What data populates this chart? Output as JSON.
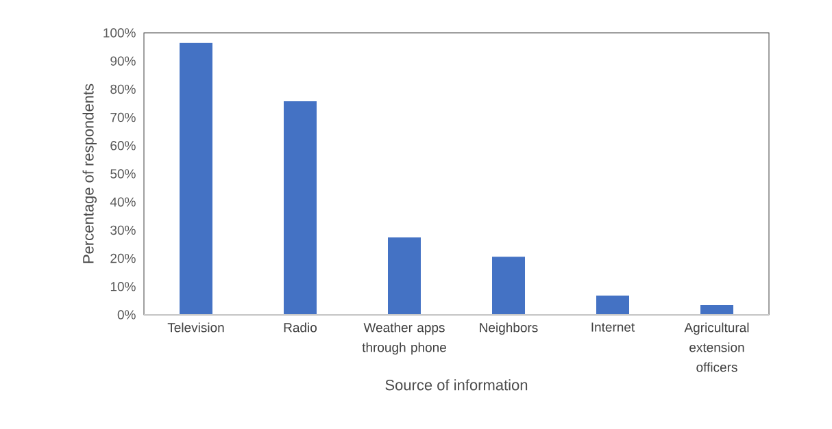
{
  "chart_data": {
    "type": "bar",
    "xlabel": "Source of information",
    "ylabel": "Percentage of respondents",
    "categories": [
      "Television",
      "Radio",
      "Weather apps through phone",
      "Neighbors",
      "Internet",
      "Agricultural extension officers"
    ],
    "values": [
      96.4,
      75.7,
      27.4,
      20.6,
      6.8,
      3.4
    ],
    "color": "#4472c4",
    "ylim": [
      0,
      100
    ],
    "yticks": [
      {
        "value": 0,
        "label": "0%"
      },
      {
        "value": 10,
        "label": "10%"
      },
      {
        "value": 20,
        "label": "20%"
      },
      {
        "value": 30,
        "label": "30%"
      },
      {
        "value": 40,
        "label": "40%"
      },
      {
        "value": 50,
        "label": "50%"
      },
      {
        "value": 60,
        "label": "60%"
      },
      {
        "value": 70,
        "label": "70%"
      },
      {
        "value": 80,
        "label": "80%"
      },
      {
        "value": 90,
        "label": "90%"
      },
      {
        "value": 100,
        "label": "100%"
      }
    ],
    "grid": false
  }
}
